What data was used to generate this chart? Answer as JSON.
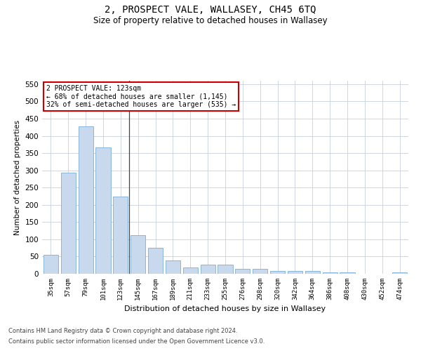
{
  "title": "2, PROSPECT VALE, WALLASEY, CH45 6TQ",
  "subtitle": "Size of property relative to detached houses in Wallasey",
  "xlabel": "Distribution of detached houses by size in Wallasey",
  "ylabel": "Number of detached properties",
  "footnote1": "Contains HM Land Registry data © Crown copyright and database right 2024.",
  "footnote2": "Contains public sector information licensed under the Open Government Licence v3.0.",
  "annotation_line1": "2 PROSPECT VALE: 123sqm",
  "annotation_line2": "← 68% of detached houses are smaller (1,145)",
  "annotation_line3": "32% of semi-detached houses are larger (535) →",
  "highlight_index": 4,
  "bar_color": "#c8d9ee",
  "bar_edge_color": "#7aaed6",
  "annotation_box_color": "#ffffff",
  "annotation_box_edge": "#cc0000",
  "background_color": "#ffffff",
  "grid_color": "#c8d0dc",
  "categories": [
    "35sqm",
    "57sqm",
    "79sqm",
    "101sqm",
    "123sqm",
    "145sqm",
    "167sqm",
    "189sqm",
    "211sqm",
    "233sqm",
    "255sqm",
    "276sqm",
    "298sqm",
    "320sqm",
    "342sqm",
    "364sqm",
    "386sqm",
    "408sqm",
    "430sqm",
    "452sqm",
    "474sqm"
  ],
  "values": [
    55,
    293,
    428,
    367,
    225,
    113,
    75,
    38,
    18,
    27,
    27,
    15,
    15,
    9,
    9,
    9,
    5,
    4,
    0,
    0,
    5
  ],
  "ylim": [
    0,
    560
  ],
  "yticks": [
    0,
    50,
    100,
    150,
    200,
    250,
    300,
    350,
    400,
    450,
    500,
    550
  ],
  "figsize": [
    6.0,
    5.0
  ],
  "dpi": 100
}
